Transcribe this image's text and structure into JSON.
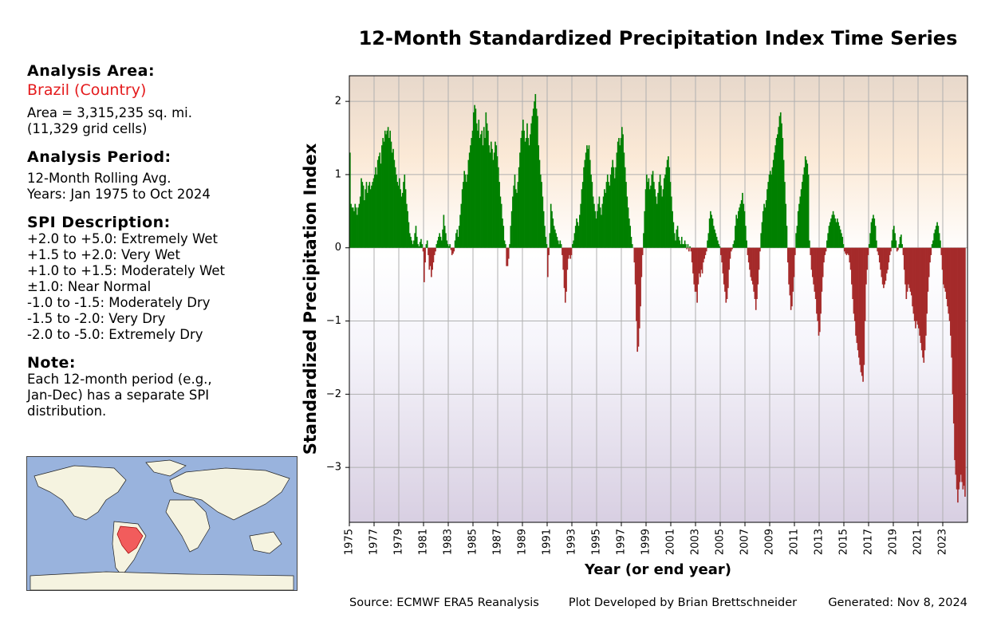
{
  "panel": {
    "area_heading": "Analysis Area:",
    "area_name": "Brazil (Country)",
    "area_lines": [
      "Area = 3,315,235 sq. mi.",
      "(11,329 grid cells)"
    ],
    "period_heading": "Analysis Period:",
    "period_lines": [
      "12-Month Rolling Avg.",
      "Years: Jan 1975 to Oct 2024"
    ],
    "spi_heading": "SPI Description:",
    "spi_lines": [
      "+2.0 to +5.0: Extremely Wet",
      "+1.5 to +2.0: Very Wet",
      "+1.0 to +1.5: Moderately Wet",
      "±1.0: Near Normal",
      "-1.0 to -1.5: Moderately Dry",
      "-1.5 to -2.0: Very Dry",
      "-2.0 to -5.0: Extremely Dry"
    ],
    "note_heading": "Note:",
    "note_lines": [
      "Each 12-month period (e.g.,",
      "Jan-Dec) has a separate SPI",
      "distribution."
    ]
  },
  "footer": {
    "source": "Source: ECMWF ERA5 Reanalysis",
    "developer": "Plot Developed by Brian Brettschneider",
    "generated": "Generated: Nov 8, 2024"
  },
  "chart_data": {
    "type": "bar",
    "title": "12-Month Standardized Precipitation Index Time Series",
    "xlabel": "Year (or end year)",
    "ylabel": "Standardized Precipitation Index",
    "color_positive": "#008000",
    "color_negative": "#a52a2a",
    "grid": true,
    "xlim": [
      1975,
      2025
    ],
    "xticks": [
      1975,
      1977,
      1979,
      1981,
      1983,
      1985,
      1987,
      1989,
      1991,
      1993,
      1995,
      1997,
      1999,
      2001,
      2003,
      2005,
      2007,
      2009,
      2011,
      2013,
      2015,
      2017,
      2019,
      2021,
      2023
    ],
    "ylim": [
      -3.75,
      2.35
    ],
    "yticks": [
      {
        "value": -3,
        "label": "−3"
      },
      {
        "value": -2,
        "label": "−2"
      },
      {
        "value": -1,
        "label": "−1"
      },
      0,
      1,
      2
    ],
    "values": [
      1.3,
      0.6,
      0.55,
      0.55,
      0.5,
      0.6,
      0.55,
      0.45,
      0.55,
      0.6,
      0.7,
      0.95,
      0.9,
      0.85,
      0.65,
      0.8,
      0.9,
      0.75,
      0.85,
      0.9,
      0.8,
      0.85,
      0.9,
      0.95,
      1.0,
      1.1,
      1.0,
      1.2,
      1.25,
      1.3,
      1.15,
      1.4,
      1.5,
      1.45,
      1.6,
      1.55,
      1.6,
      1.65,
      1.5,
      1.6,
      1.45,
      1.3,
      1.35,
      1.2,
      1.1,
      1.0,
      0.9,
      0.85,
      0.95,
      0.8,
      0.7,
      0.75,
      0.9,
      1.0,
      0.8,
      0.6,
      0.5,
      0.35,
      0.2,
      0.15,
      0.1,
      0.05,
      0.1,
      0.2,
      0.3,
      0.15,
      0.05,
      0.02,
      0.08,
      0.12,
      0.05,
      -0.05,
      -0.47,
      -0.2,
      0.05,
      0.1,
      -0.1,
      -0.3,
      -0.25,
      -0.4,
      -0.3,
      -0.2,
      -0.1,
      -0.05,
      0.05,
      0.1,
      0.15,
      0.2,
      0.15,
      0.1,
      0.25,
      0.45,
      0.3,
      0.2,
      0.1,
      0.05,
      0.02,
      0.05,
      -0.03,
      -0.1,
      -0.08,
      -0.05,
      0.1,
      0.2,
      0.25,
      0.15,
      0.3,
      0.45,
      0.6,
      0.8,
      0.9,
      1.05,
      1.0,
      0.9,
      1.0,
      1.2,
      1.3,
      1.4,
      1.5,
      1.6,
      1.85,
      1.95,
      1.9,
      1.7,
      1.6,
      1.75,
      1.5,
      1.55,
      1.6,
      1.4,
      1.65,
      1.5,
      1.85,
      1.7,
      1.6,
      1.4,
      1.3,
      1.45,
      1.35,
      1.2,
      1.3,
      1.45,
      1.4,
      1.25,
      1.1,
      0.9,
      0.7,
      0.6,
      0.4,
      0.3,
      0.1,
      0.05,
      -0.25,
      -0.25,
      -0.15,
      0.05,
      0.3,
      0.5,
      0.7,
      0.85,
      1.0,
      0.8,
      0.75,
      0.9,
      1.1,
      1.3,
      1.5,
      1.6,
      1.75,
      1.6,
      1.45,
      1.5,
      1.7,
      1.5,
      1.4,
      1.55,
      1.7,
      1.8,
      1.9,
      2.0,
      2.1,
      1.9,
      1.8,
      1.4,
      1.2,
      1.0,
      0.9,
      0.7,
      0.5,
      0.3,
      0.15,
      0.05,
      -0.4,
      -0.1,
      0.2,
      0.6,
      0.5,
      0.4,
      0.3,
      0.25,
      0.2,
      0.15,
      0.1,
      0.05,
      0.1,
      0.05,
      -0.1,
      -0.3,
      -0.55,
      -0.75,
      -0.6,
      -0.3,
      -0.15,
      -0.1,
      -0.15,
      -0.1,
      0.05,
      0.1,
      0.2,
      0.3,
      0.4,
      0.35,
      0.3,
      0.45,
      0.6,
      0.8,
      0.9,
      1.1,
      1.2,
      1.3,
      1.4,
      1.35,
      1.4,
      1.2,
      1.0,
      0.9,
      0.7,
      0.6,
      0.5,
      0.4,
      0.5,
      0.6,
      0.7,
      0.55,
      0.45,
      0.6,
      0.7,
      0.8,
      0.75,
      0.9,
      1.0,
      0.9,
      0.85,
      1.0,
      1.1,
      1.2,
      1.1,
      0.95,
      1.1,
      1.3,
      1.45,
      1.5,
      1.4,
      1.5,
      1.65,
      1.55,
      1.3,
      1.1,
      0.9,
      0.7,
      0.55,
      0.4,
      0.3,
      0.15,
      0.05,
      0.0,
      -0.2,
      -0.5,
      -1.0,
      -1.42,
      -1.35,
      -1.1,
      -0.8,
      -0.4,
      -0.1,
      0.2,
      0.5,
      0.8,
      1.0,
      0.9,
      0.95,
      0.8,
      0.85,
      1.0,
      1.05,
      0.9,
      0.8,
      0.7,
      0.6,
      0.75,
      0.9,
      1.0,
      0.85,
      0.7,
      0.8,
      0.95,
      1.0,
      1.1,
      1.2,
      1.25,
      1.1,
      0.9,
      0.7,
      0.5,
      0.35,
      0.2,
      0.1,
      0.25,
      0.3,
      0.15,
      0.1,
      0.05,
      0.15,
      0.05,
      0.05,
      0.1,
      0.05,
      -0.02,
      0.05,
      -0.05,
      0.02,
      -0.05,
      -0.2,
      -0.35,
      -0.5,
      -0.6,
      -0.6,
      -0.75,
      -0.5,
      -0.35,
      -0.4,
      -0.3,
      -0.35,
      -0.2,
      -0.15,
      -0.1,
      -0.05,
      0.1,
      0.2,
      0.4,
      0.5,
      0.45,
      0.4,
      0.3,
      0.25,
      0.2,
      0.15,
      0.1,
      0.05,
      0.02,
      -0.1,
      -0.2,
      -0.35,
      -0.5,
      -0.6,
      -0.75,
      -0.7,
      -0.55,
      -0.3,
      -0.15,
      -0.05,
      -0.02,
      0.05,
      0.1,
      0.3,
      0.45,
      0.4,
      0.5,
      0.55,
      0.6,
      0.65,
      0.75,
      0.6,
      0.5,
      0.3,
      0.1,
      -0.1,
      -0.2,
      -0.3,
      -0.4,
      -0.45,
      -0.5,
      -0.6,
      -0.7,
      -0.85,
      -0.7,
      -0.5,
      -0.3,
      -0.05,
      0.2,
      0.35,
      0.5,
      0.6,
      0.55,
      0.65,
      0.8,
      0.9,
      1.0,
      1.05,
      1.0,
      1.1,
      1.2,
      1.3,
      1.4,
      1.5,
      1.55,
      1.65,
      1.8,
      1.85,
      1.7,
      1.5,
      1.2,
      0.9,
      0.6,
      0.3,
      -0.2,
      -0.5,
      -0.65,
      -0.85,
      -0.8,
      -0.6,
      -0.4,
      -0.1,
      0.2,
      0.3,
      0.5,
      0.6,
      0.7,
      0.8,
      0.9,
      1.0,
      1.1,
      1.25,
      1.2,
      1.15,
      1.0,
      0.1,
      -0.1,
      -0.3,
      -0.4,
      -0.5,
      -0.6,
      -0.7,
      -0.9,
      -1.0,
      -1.2,
      -1.15,
      -0.9,
      -0.6,
      -0.4,
      -0.2,
      -0.1,
      -0.05,
      0.1,
      0.2,
      0.3,
      0.35,
      0.4,
      0.45,
      0.5,
      0.45,
      0.4,
      0.35,
      0.4,
      0.35,
      0.3,
      0.25,
      0.2,
      0.15,
      0.05,
      -0.05,
      -0.08,
      -0.1,
      -0.08,
      -0.1,
      -0.2,
      -0.3,
      -0.5,
      -0.7,
      -0.9,
      -1.0,
      -1.2,
      -1.3,
      -1.4,
      -1.5,
      -1.6,
      -1.7,
      -1.75,
      -1.83,
      -1.6,
      -1.0,
      -0.5,
      -0.3,
      -0.1,
      0.05,
      0.2,
      0.35,
      0.4,
      0.45,
      0.4,
      0.3,
      0.1,
      -0.05,
      -0.1,
      -0.2,
      -0.3,
      -0.4,
      -0.5,
      -0.55,
      -0.5,
      -0.45,
      -0.35,
      -0.3,
      -0.2,
      -0.1,
      -0.05,
      0.1,
      0.25,
      0.3,
      0.2,
      0.1,
      -0.05,
      -0.03,
      0.05,
      0.15,
      0.18,
      0.05,
      -0.1,
      -0.3,
      -0.5,
      -0.7,
      -0.6,
      -0.5,
      -0.55,
      -0.6,
      -0.65,
      -0.8,
      -0.9,
      -1.0,
      -1.1,
      -1.0,
      -1.05,
      -1.1,
      -1.2,
      -1.3,
      -1.4,
      -1.5,
      -1.57,
      -1.4,
      -1.2,
      -0.9,
      -0.6,
      -0.4,
      -0.2,
      -0.1,
      0.05,
      0.1,
      0.2,
      0.25,
      0.3,
      0.35,
      0.3,
      0.2,
      0.1,
      -0.1,
      -0.3,
      -0.5,
      -0.55,
      -0.6,
      -0.7,
      -0.8,
      -0.9,
      -1.0,
      -1.2,
      -1.5,
      -2.0,
      -2.4,
      -2.9,
      -3.1,
      -3.3,
      -3.48,
      -3.3,
      -3.2,
      -3.1,
      -3.2,
      -3.3,
      -3.25,
      -3.4
    ]
  }
}
